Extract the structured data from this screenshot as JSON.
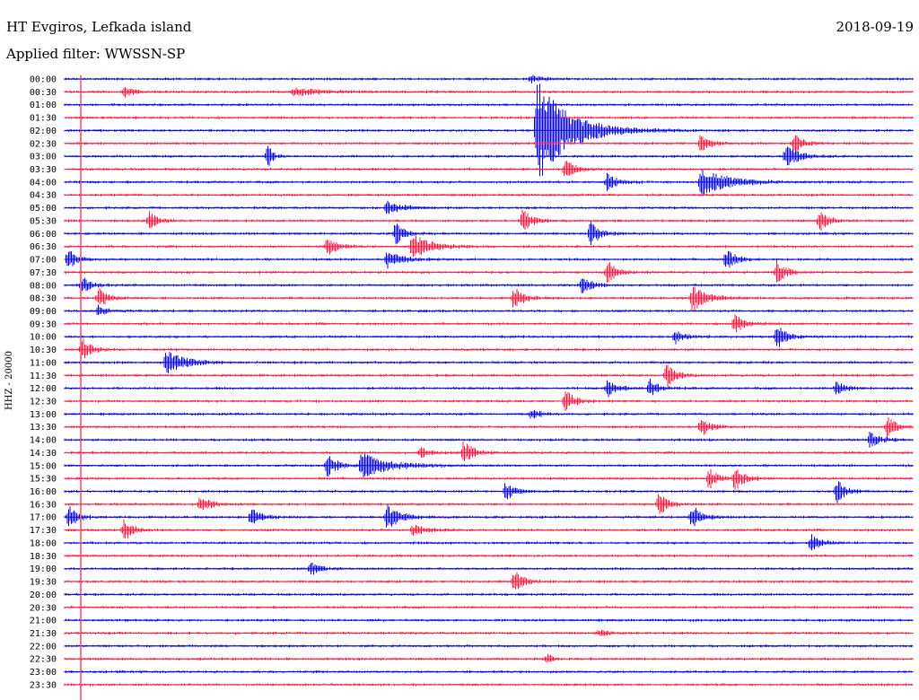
{
  "header": {
    "station": "HT Evgiros, Lefkada island",
    "filter": "Applied filter: WWSSN-SP",
    "date": "2018-09-19"
  },
  "chart_data": {
    "type": "line",
    "ylabel": "HHZ - 20000",
    "rows": [
      "00:00",
      "00:30",
      "01:00",
      "01:30",
      "02:00",
      "02:30",
      "03:00",
      "03:30",
      "04:00",
      "04:30",
      "05:00",
      "05:30",
      "06:00",
      "06:30",
      "07:00",
      "07:30",
      "08:00",
      "08:30",
      "09:00",
      "09:30",
      "10:00",
      "10:30",
      "11:00",
      "11:30",
      "12:00",
      "12:30",
      "13:00",
      "13:30",
      "14:00",
      "14:30",
      "15:00",
      "15:30",
      "16:00",
      "16:30",
      "17:00",
      "17:30",
      "18:00",
      "18:30",
      "19:00",
      "19:30",
      "20:00",
      "20:30",
      "21:00",
      "21:30",
      "22:00",
      "22:30",
      "23:00",
      "23:30"
    ],
    "colors": {
      "even": "#0000e6",
      "odd": "#ff1a40",
      "marker": "#ff1a40"
    },
    "events": [
      {
        "row": 0,
        "t": 0.55,
        "amp": 5,
        "w": 0.01
      },
      {
        "row": 1,
        "t": 0.07,
        "amp": 6,
        "w": 0.01
      },
      {
        "row": 1,
        "t": 0.27,
        "amp": 4,
        "w": 0.03
      },
      {
        "row": 4,
        "t": 0.557,
        "amp": 60,
        "w": 0.035
      },
      {
        "row": 5,
        "t": 0.75,
        "amp": 10,
        "w": 0.01
      },
      {
        "row": 5,
        "t": 0.86,
        "amp": 12,
        "w": 0.01
      },
      {
        "row": 6,
        "t": 0.24,
        "amp": 14,
        "w": 0.005
      },
      {
        "row": 6,
        "t": 0.85,
        "amp": 12,
        "w": 0.015
      },
      {
        "row": 7,
        "t": 0.59,
        "amp": 10,
        "w": 0.012
      },
      {
        "row": 8,
        "t": 0.64,
        "amp": 10,
        "w": 0.01
      },
      {
        "row": 8,
        "t": 0.75,
        "amp": 15,
        "w": 0.03
      },
      {
        "row": 10,
        "t": 0.38,
        "amp": 8,
        "w": 0.015
      },
      {
        "row": 11,
        "t": 0.1,
        "amp": 10,
        "w": 0.01
      },
      {
        "row": 11,
        "t": 0.54,
        "amp": 14,
        "w": 0.01
      },
      {
        "row": 11,
        "t": 0.89,
        "amp": 12,
        "w": 0.01
      },
      {
        "row": 12,
        "t": 0.39,
        "amp": 12,
        "w": 0.01
      },
      {
        "row": 12,
        "t": 0.62,
        "amp": 14,
        "w": 0.01
      },
      {
        "row": 13,
        "t": 0.31,
        "amp": 12,
        "w": 0.01
      },
      {
        "row": 13,
        "t": 0.41,
        "amp": 14,
        "w": 0.02
      },
      {
        "row": 14,
        "t": 0.004,
        "amp": 12,
        "w": 0.01
      },
      {
        "row": 14,
        "t": 0.38,
        "amp": 10,
        "w": 0.015
      },
      {
        "row": 14,
        "t": 0.78,
        "amp": 12,
        "w": 0.01
      },
      {
        "row": 15,
        "t": 0.64,
        "amp": 14,
        "w": 0.01
      },
      {
        "row": 15,
        "t": 0.84,
        "amp": 14,
        "w": 0.01
      },
      {
        "row": 16,
        "t": 0.02,
        "amp": 10,
        "w": 0.01
      },
      {
        "row": 16,
        "t": 0.61,
        "amp": 10,
        "w": 0.01
      },
      {
        "row": 17,
        "t": 0.04,
        "amp": 12,
        "w": 0.01
      },
      {
        "row": 17,
        "t": 0.53,
        "amp": 14,
        "w": 0.01
      },
      {
        "row": 17,
        "t": 0.74,
        "amp": 16,
        "w": 0.015
      },
      {
        "row": 18,
        "t": 0.04,
        "amp": 6,
        "w": 0.01
      },
      {
        "row": 19,
        "t": 0.79,
        "amp": 14,
        "w": 0.01
      },
      {
        "row": 20,
        "t": 0.72,
        "amp": 8,
        "w": 0.01
      },
      {
        "row": 20,
        "t": 0.84,
        "amp": 14,
        "w": 0.01
      },
      {
        "row": 21,
        "t": 0.02,
        "amp": 14,
        "w": 0.01
      },
      {
        "row": 22,
        "t": 0.12,
        "amp": 14,
        "w": 0.02
      },
      {
        "row": 23,
        "t": 0.71,
        "amp": 14,
        "w": 0.01
      },
      {
        "row": 24,
        "t": 0.64,
        "amp": 10,
        "w": 0.01
      },
      {
        "row": 24,
        "t": 0.69,
        "amp": 10,
        "w": 0.01
      },
      {
        "row": 24,
        "t": 0.91,
        "amp": 8,
        "w": 0.01
      },
      {
        "row": 25,
        "t": 0.59,
        "amp": 14,
        "w": 0.01
      },
      {
        "row": 26,
        "t": 0.55,
        "amp": 6,
        "w": 0.01
      },
      {
        "row": 27,
        "t": 0.75,
        "amp": 12,
        "w": 0.01
      },
      {
        "row": 27,
        "t": 0.97,
        "amp": 12,
        "w": 0.01
      },
      {
        "row": 28,
        "t": 0.95,
        "amp": 10,
        "w": 0.01
      },
      {
        "row": 29,
        "t": 0.42,
        "amp": 6,
        "w": 0.01
      },
      {
        "row": 29,
        "t": 0.47,
        "amp": 14,
        "w": 0.01
      },
      {
        "row": 30,
        "t": 0.31,
        "amp": 14,
        "w": 0.01
      },
      {
        "row": 30,
        "t": 0.35,
        "amp": 14,
        "w": 0.03
      },
      {
        "row": 31,
        "t": 0.76,
        "amp": 12,
        "w": 0.01
      },
      {
        "row": 31,
        "t": 0.79,
        "amp": 14,
        "w": 0.01
      },
      {
        "row": 32,
        "t": 0.52,
        "amp": 10,
        "w": 0.01
      },
      {
        "row": 32,
        "t": 0.91,
        "amp": 14,
        "w": 0.01
      },
      {
        "row": 33,
        "t": 0.16,
        "amp": 10,
        "w": 0.01
      },
      {
        "row": 33,
        "t": 0.7,
        "amp": 14,
        "w": 0.01
      },
      {
        "row": 34,
        "t": 0.005,
        "amp": 12,
        "w": 0.01
      },
      {
        "row": 34,
        "t": 0.22,
        "amp": 12,
        "w": 0.01
      },
      {
        "row": 34,
        "t": 0.38,
        "amp": 14,
        "w": 0.015
      },
      {
        "row": 34,
        "t": 0.74,
        "amp": 14,
        "w": 0.01
      },
      {
        "row": 35,
        "t": 0.07,
        "amp": 12,
        "w": 0.01
      },
      {
        "row": 35,
        "t": 0.41,
        "amp": 6,
        "w": 0.015
      },
      {
        "row": 36,
        "t": 0.88,
        "amp": 10,
        "w": 0.01
      },
      {
        "row": 38,
        "t": 0.29,
        "amp": 8,
        "w": 0.01
      },
      {
        "row": 39,
        "t": 0.53,
        "amp": 14,
        "w": 0.01
      },
      {
        "row": 43,
        "t": 0.63,
        "amp": 4,
        "w": 0.01
      },
      {
        "row": 45,
        "t": 0.57,
        "amp": 6,
        "w": 0.005
      }
    ]
  }
}
